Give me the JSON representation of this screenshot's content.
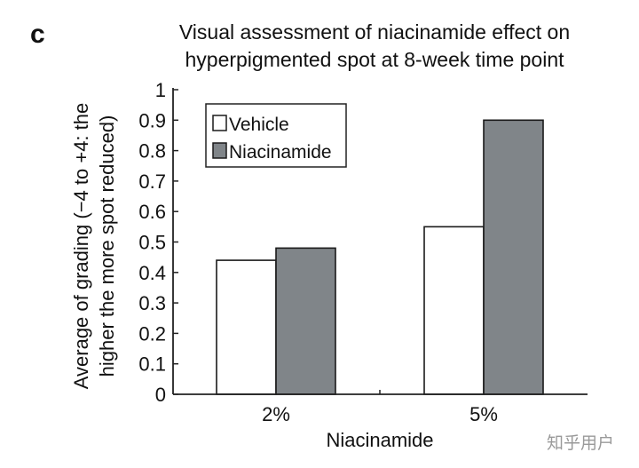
{
  "panel_label": "c",
  "watermark": "知乎用户",
  "chart_data": {
    "type": "bar",
    "title": "Visual assessment of niacinamide effect on hyperpigmented spot at 8-week time point",
    "title_lines": [
      "Visual assessment of niacinamide effect on",
      "hyperpigmented spot at 8-week time point"
    ],
    "xlabel": "Niacinamide",
    "ylabel": "Average of grading (−4 to +4: the higher the more spot reduced)",
    "ylabel_lines": [
      "Average of grading (−4 to +4: the",
      "higher the more spot reduced)"
    ],
    "categories": [
      "2%",
      "5%"
    ],
    "series": [
      {
        "name": "Vehicle",
        "values": [
          0.44,
          0.55
        ],
        "color": "#ffffff"
      },
      {
        "name": "Niacinamide",
        "values": [
          0.48,
          0.9
        ],
        "color": "#808589"
      }
    ],
    "ylim": [
      0,
      1
    ],
    "yticks": [
      "0",
      "0.1",
      "0.2",
      "0.3",
      "0.4",
      "0.5",
      "0.6",
      "0.7",
      "0.8",
      "0.9",
      "1"
    ],
    "grid": false,
    "legend_position": "top-left"
  }
}
